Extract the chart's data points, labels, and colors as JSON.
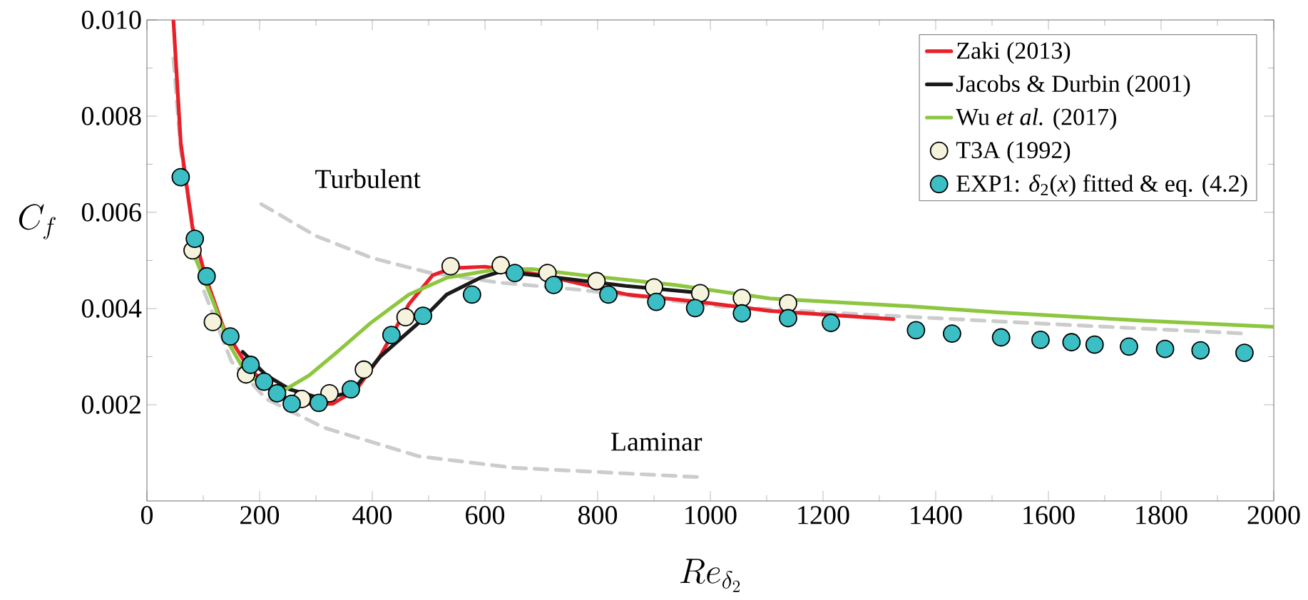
{
  "chart_data": {
    "type": "line",
    "xlabel": "Re_{\\delta_2}",
    "ylabel": "C_f",
    "xlim": [
      0,
      2000
    ],
    "ylim": [
      0,
      0.01
    ],
    "xticks": [
      0,
      200,
      400,
      600,
      800,
      1000,
      1200,
      1400,
      1600,
      1800,
      2000
    ],
    "yticks": [
      0.002,
      0.004,
      0.006,
      0.008,
      {
        "value": 0.01,
        "label": "0.010"
      }
    ],
    "legend": "top right",
    "annotations": [
      "Turbulent",
      "Laminar"
    ],
    "series": [
      {
        "color": "#cccccc",
        "line_style": "dashed",
        "marker": "none",
        "x": [
          203,
          300,
          400,
          500,
          625,
          769,
          1022,
          1317,
          1600,
          1949
        ],
        "values": [
          0.00617,
          0.00551,
          0.00505,
          0.00475,
          0.00454,
          0.00439,
          0.00404,
          0.00385,
          0.00368,
          0.00348
        ]
      },
      {
        "color": "#cccccc",
        "line_style": "dashed",
        "marker": "none",
        "x": [
          47,
          60,
          100,
          150,
          212,
          313,
          482,
          651,
          988
        ],
        "values": [
          0.0092,
          0.0073,
          0.0044,
          0.0029,
          0.00212,
          0.00153,
          0.00093,
          0.00069,
          0.00049
        ]
      },
      {
        "name": "Zaki (2013)",
        "color": "#e8202a",
        "line_style": "solid",
        "marker": "none",
        "x": [
          47,
          60,
          81,
          103,
          136,
          178,
          228,
          279,
          330,
          372,
          414,
          465,
          507,
          541,
          600,
          700,
          853,
          980,
          1106,
          1325
        ],
        "values": [
          0.01,
          0.00745,
          0.00567,
          0.0047,
          0.0036,
          0.00281,
          0.00222,
          0.00202,
          0.00202,
          0.00232,
          0.00301,
          0.00409,
          0.00469,
          0.00484,
          0.00487,
          0.0047,
          0.00429,
          0.00414,
          0.00395,
          0.00378
        ]
      },
      {
        "name": "Jacobs & Durbin (2001)",
        "color": "#1a1a1a",
        "line_style": "solid",
        "marker": "none",
        "x": [
          170,
          212,
          254,
          313,
          364,
          414,
          482,
          532,
          592,
          628,
          700,
          850,
          971
        ],
        "values": [
          0.0031,
          0.00261,
          0.00232,
          0.00212,
          0.00227,
          0.003,
          0.0037,
          0.00429,
          0.00464,
          0.00477,
          0.00468,
          0.00447,
          0.00434
        ]
      },
      {
        "name": "Wu *et al.* (2017)",
        "color": "#8dc63f",
        "line_style": "solid",
        "marker": "none",
        "x": [
          85,
          119,
          144,
          178,
          212,
          246,
          288,
          338,
          397,
          465,
          532,
          617,
          684,
          769,
          937,
          1106,
          1351,
          1511,
          1765,
          2000
        ],
        "values": [
          0.00508,
          0.0041,
          0.0033,
          0.00261,
          0.00241,
          0.00232,
          0.00261,
          0.0031,
          0.0037,
          0.00429,
          0.00464,
          0.00481,
          0.00482,
          0.0047,
          0.00449,
          0.00421,
          0.00405,
          0.00392,
          0.00375,
          0.00362
        ]
      },
      {
        "type": "scatter",
        "name": "T3A (1992)",
        "color": "#f5f3dc",
        "marker": "circle",
        "x": [
          81,
          117,
          176,
          275,
          324,
          385,
          459,
          539,
          628,
          711,
          798,
          900,
          982,
          1056,
          1138
        ],
        "values": [
          0.00521,
          0.00372,
          0.00263,
          0.00212,
          0.00224,
          0.00273,
          0.00382,
          0.00488,
          0.0049,
          0.00474,
          0.00457,
          0.00444,
          0.00432,
          0.00422,
          0.00411
        ]
      },
      {
        "type": "scatter",
        "name": "EXP1: *δ*$_{2}$(*x*) fitted & eq. (4.2)",
        "color": "#3bbfc4",
        "marker": "circle",
        "x": [
          60,
          85,
          106,
          148,
          184,
          208,
          231,
          257,
          305,
          362,
          434,
          490,
          577,
          653,
          722,
          819,
          904,
          973,
          1056,
          1138,
          1214,
          1365,
          1429,
          1516,
          1586,
          1641,
          1682,
          1743,
          1807,
          1870,
          1948
        ],
        "values": [
          0.00673,
          0.00545,
          0.00467,
          0.00342,
          0.00283,
          0.00248,
          0.00224,
          0.00202,
          0.00204,
          0.00232,
          0.00345,
          0.00385,
          0.00429,
          0.00474,
          0.00449,
          0.00429,
          0.00414,
          0.00401,
          0.0039,
          0.0038,
          0.0037,
          0.00355,
          0.00348,
          0.0034,
          0.00335,
          0.0033,
          0.00325,
          0.00321,
          0.00316,
          0.00313,
          0.00308
        ]
      }
    ]
  }
}
